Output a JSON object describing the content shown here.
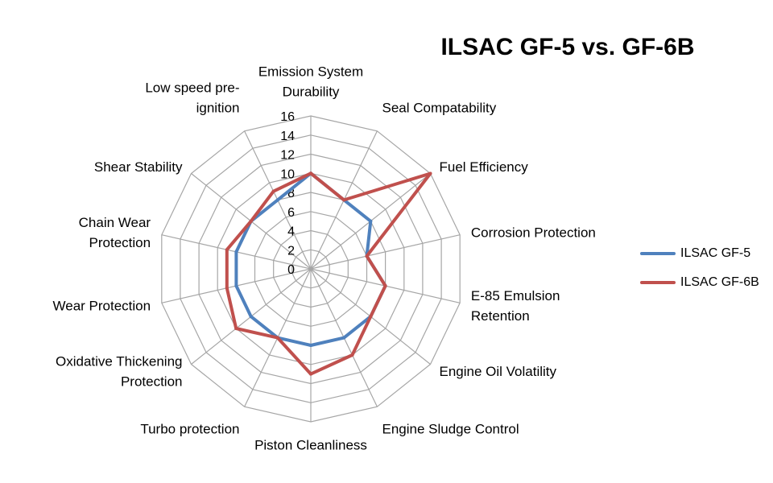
{
  "chart_data": {
    "type": "radar",
    "title": "ILSAC GF-5 vs. GF-6B",
    "categories": [
      [
        "Emission System",
        "Durability"
      ],
      [
        "Seal Compatability"
      ],
      [
        "Fuel Efficiency"
      ],
      [
        "Corrosion Protection"
      ],
      [
        "E-85 Emulsion",
        "Retention"
      ],
      [
        "Engine Oil Volatility"
      ],
      [
        "Engine Sludge Control"
      ],
      [
        "Piston Cleanliness"
      ],
      [
        "Turbo protection"
      ],
      [
        "Oxidative Thickening",
        "Protection"
      ],
      [
        "Wear Protection"
      ],
      [
        "Chain Wear",
        "Protection"
      ],
      [
        "Shear Stability"
      ],
      [
        "Low speed pre-",
        "ignition"
      ]
    ],
    "rlim": [
      0,
      16
    ],
    "rticks": [
      0,
      2,
      4,
      6,
      8,
      10,
      12,
      14,
      16
    ],
    "grid": true,
    "legend_position": "right",
    "series": [
      {
        "name": "ILSAC GF-5",
        "color": "#4F81BD",
        "values": [
          10,
          8,
          8,
          6,
          8,
          8,
          8,
          8,
          8,
          8,
          8,
          8,
          8,
          8
        ]
      },
      {
        "name": "ILSAC GF-6B",
        "color": "#C0504D",
        "values": [
          10,
          8,
          16,
          6,
          8,
          8,
          10,
          11,
          8,
          10,
          9,
          9,
          8,
          9
        ]
      }
    ]
  }
}
